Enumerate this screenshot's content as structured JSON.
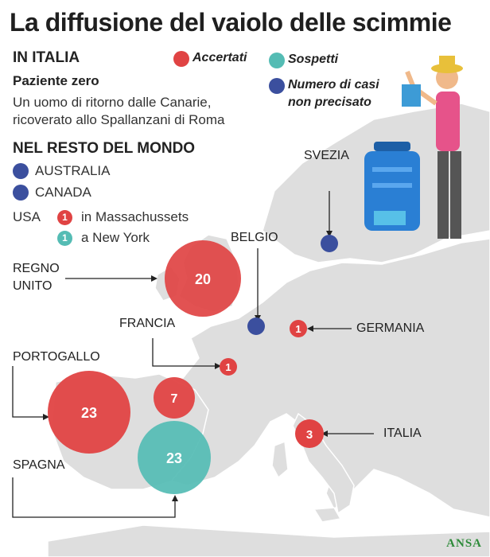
{
  "title": "La diffusione del vaiolo delle scimmie",
  "italy_section": {
    "heading": "IN ITALIA",
    "patient_label": "Paziente zero",
    "patient_desc_line1": "Un uomo di ritorno dalle Canarie,",
    "patient_desc_line2": "ricoverato allo Spallanzani di Roma"
  },
  "legend": {
    "confirmed": "Accertati",
    "suspected": "Sospetti",
    "unspecified_line1": "Numero di casi",
    "unspecified_line2": "non precisato"
  },
  "world_section": {
    "heading": "NEL RESTO DEL MONDO",
    "australia": "AUSTRALIA",
    "canada": "CANADA",
    "usa": "USA",
    "usa_massachusetts_count": "1",
    "usa_massachusetts": "in Massachussets",
    "usa_newyork_count": "1",
    "usa_newyork": "a New York"
  },
  "countries": {
    "svezia": "SVEZIA",
    "belgio": "BELGIO",
    "regno_unito": "REGNO\nUNITO",
    "francia": "FRANCIA",
    "germania": "GERMANIA",
    "portogallo": "PORTOGALLO",
    "spagna": "SPAGNA",
    "italia": "ITALIA"
  },
  "values": {
    "uk_confirmed": "20",
    "portugal_confirmed": "23",
    "spain_confirmed": "7",
    "spain_suspected": "23",
    "france_confirmed": "1",
    "germany_confirmed": "1",
    "italy_confirmed": "3"
  },
  "colors": {
    "confirmed": "#e04343",
    "suspected": "#54bcb4",
    "unspecified": "#3b4f9e",
    "land": "#dedede"
  },
  "credit": "ANSA"
}
